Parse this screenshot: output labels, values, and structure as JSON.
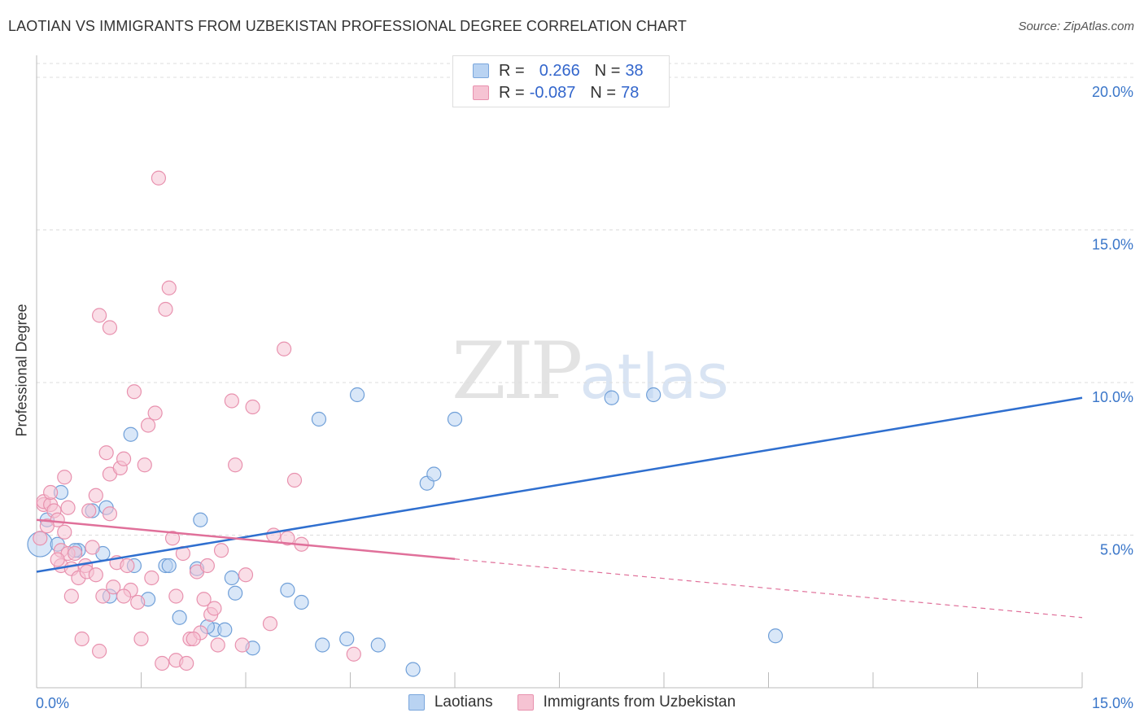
{
  "chart_data": {
    "type": "scatter",
    "title": "LAOTIAN VS IMMIGRANTS FROM UZBEKISTAN PROFESSIONAL DEGREE CORRELATION CHART",
    "source": "Source: ZipAtlas.com",
    "ylabel": "Professional Degree",
    "xlim": [
      0,
      15
    ],
    "ylim": [
      0,
      20
    ],
    "x_ticks": [
      0,
      1.5,
      3,
      4.5,
      6,
      7.5,
      9,
      10.5,
      12,
      13.5,
      15
    ],
    "x_tick_labels": [
      {
        "value": 0,
        "label": "0.0%"
      },
      {
        "value": 15,
        "label": "15.0%"
      }
    ],
    "y_tick_labels": [
      {
        "value": 5,
        "label": "5.0%"
      },
      {
        "value": 10,
        "label": "10.0%"
      },
      {
        "value": 15,
        "label": "15.0%"
      },
      {
        "value": 20,
        "label": "20.0%"
      }
    ],
    "watermark": {
      "zip": "ZIP",
      "atlas": "atlas"
    },
    "colors": {
      "blue": "#2f6fcf",
      "pink": "#e0709a",
      "blue_fill": "#b9d3f2",
      "pink_fill": "#f6c3d3",
      "grid": "#dcdcdc",
      "tick_label": "#3a76c9"
    },
    "legend": [
      {
        "r_label": "R =",
        "r_value": "0.266",
        "n_label": "N =",
        "n_value": "38"
      },
      {
        "r_label": "R =",
        "r_value": "-0.087",
        "n_label": "N =",
        "n_value": "78"
      }
    ],
    "series": [
      {
        "name": "Laotians",
        "color": "blue",
        "trend": {
          "x0": 0,
          "y0": 3.8,
          "x1": 15,
          "y1": 9.5,
          "dashed_from": null
        },
        "points": [
          [
            0.05,
            4.7,
            1.8
          ],
          [
            0.15,
            5.5,
            1
          ],
          [
            0.3,
            4.7,
            1
          ],
          [
            0.6,
            4.5,
            1
          ],
          [
            0.8,
            5.8,
            1
          ],
          [
            0.95,
            4.4,
            1
          ],
          [
            1.35,
            8.3,
            1
          ],
          [
            1.05,
            3.0,
            1
          ],
          [
            1.4,
            4.0,
            1
          ],
          [
            1.6,
            2.9,
            1
          ],
          [
            1.85,
            4.0,
            1
          ],
          [
            1.9,
            4.0,
            1
          ],
          [
            2.05,
            2.3,
            1
          ],
          [
            2.3,
            3.9,
            1
          ],
          [
            2.35,
            5.5,
            1
          ],
          [
            2.55,
            1.9,
            1
          ],
          [
            2.7,
            1.9,
            1
          ],
          [
            2.8,
            3.6,
            1
          ],
          [
            2.85,
            3.1,
            1
          ],
          [
            3.1,
            1.3,
            1
          ],
          [
            3.6,
            3.2,
            1
          ],
          [
            3.8,
            2.8,
            1
          ],
          [
            4.05,
            8.8,
            1
          ],
          [
            4.1,
            1.4,
            1
          ],
          [
            4.6,
            9.6,
            1
          ],
          [
            4.45,
            1.6,
            1
          ],
          [
            4.9,
            1.4,
            1
          ],
          [
            5.6,
            6.7,
            1
          ],
          [
            5.7,
            7.0,
            1
          ],
          [
            5.4,
            0.6,
            1
          ],
          [
            6.0,
            8.8,
            1
          ],
          [
            8.25,
            9.5,
            1
          ],
          [
            8.85,
            9.6,
            1
          ],
          [
            10.6,
            1.7,
            1
          ],
          [
            0.35,
            6.4,
            1
          ],
          [
            0.55,
            4.5,
            1
          ],
          [
            1.0,
            5.9,
            1
          ],
          [
            2.45,
            2.0,
            1
          ]
        ]
      },
      {
        "name": "Immigrants from Uzbekistan",
        "color": "pink",
        "trend": {
          "x0": 0,
          "y0": 5.5,
          "x1": 15,
          "y1": 2.3,
          "dashed_from": 6.0
        },
        "points": [
          [
            0.05,
            4.9,
            1
          ],
          [
            0.1,
            6.0,
            1
          ],
          [
            0.1,
            6.1,
            1
          ],
          [
            0.2,
            6.0,
            1
          ],
          [
            0.2,
            6.4,
            1
          ],
          [
            0.25,
            5.8,
            1
          ],
          [
            0.3,
            5.5,
            1
          ],
          [
            0.35,
            4.5,
            1
          ],
          [
            0.35,
            4.0,
            1
          ],
          [
            0.4,
            6.9,
            1
          ],
          [
            0.4,
            5.1,
            1
          ],
          [
            0.45,
            4.4,
            1
          ],
          [
            0.5,
            3.9,
            1
          ],
          [
            0.5,
            3.0,
            1
          ],
          [
            0.55,
            4.4,
            1
          ],
          [
            0.6,
            3.6,
            1
          ],
          [
            0.65,
            1.6,
            1
          ],
          [
            0.7,
            4.0,
            1
          ],
          [
            0.72,
            3.8,
            1
          ],
          [
            0.75,
            5.8,
            1
          ],
          [
            0.8,
            4.6,
            1
          ],
          [
            0.85,
            3.7,
            1
          ],
          [
            0.85,
            6.3,
            1
          ],
          [
            0.9,
            1.2,
            1
          ],
          [
            0.95,
            3.0,
            1
          ],
          [
            1.0,
            7.7,
            1
          ],
          [
            1.05,
            7.0,
            1
          ],
          [
            1.05,
            5.7,
            1
          ],
          [
            1.1,
            3.3,
            1
          ],
          [
            1.15,
            4.1,
            1
          ],
          [
            1.2,
            7.2,
            1
          ],
          [
            1.25,
            7.5,
            1
          ],
          [
            1.3,
            4.0,
            1
          ],
          [
            1.35,
            3.2,
            1
          ],
          [
            1.4,
            9.7,
            1
          ],
          [
            1.45,
            2.8,
            1
          ],
          [
            1.5,
            1.6,
            1
          ],
          [
            1.55,
            7.3,
            1
          ],
          [
            1.6,
            8.6,
            1
          ],
          [
            1.65,
            3.6,
            1
          ],
          [
            1.7,
            9.0,
            1
          ],
          [
            1.75,
            16.7,
            1
          ],
          [
            1.85,
            12.4,
            1
          ],
          [
            1.9,
            13.1,
            1
          ],
          [
            1.95,
            4.9,
            1
          ],
          [
            2.0,
            3.0,
            1
          ],
          [
            2.0,
            0.9,
            1
          ],
          [
            2.1,
            4.4,
            1
          ],
          [
            2.15,
            0.8,
            1
          ],
          [
            2.2,
            1.6,
            1
          ],
          [
            2.3,
            3.8,
            1
          ],
          [
            2.35,
            1.8,
            1
          ],
          [
            2.4,
            2.9,
            1
          ],
          [
            2.45,
            4.0,
            1
          ],
          [
            2.5,
            2.4,
            1
          ],
          [
            2.55,
            2.6,
            1
          ],
          [
            2.6,
            1.4,
            1
          ],
          [
            2.65,
            4.5,
            1
          ],
          [
            2.8,
            9.4,
            1
          ],
          [
            2.85,
            7.3,
            1
          ],
          [
            2.95,
            1.4,
            1
          ],
          [
            3.0,
            3.7,
            1
          ],
          [
            3.1,
            9.2,
            1
          ],
          [
            3.35,
            2.1,
            1
          ],
          [
            3.4,
            5.0,
            1
          ],
          [
            3.55,
            11.1,
            1
          ],
          [
            3.6,
            4.9,
            1
          ],
          [
            3.7,
            6.8,
            1
          ],
          [
            3.8,
            4.7,
            1
          ],
          [
            4.55,
            1.1,
            1
          ],
          [
            1.05,
            11.8,
            1
          ],
          [
            0.9,
            12.2,
            1
          ],
          [
            1.25,
            3.0,
            1
          ],
          [
            0.15,
            5.3,
            1
          ],
          [
            0.3,
            4.2,
            1
          ],
          [
            1.8,
            0.8,
            1
          ],
          [
            2.25,
            1.6,
            1
          ],
          [
            0.45,
            5.9,
            1
          ]
        ]
      }
    ]
  }
}
